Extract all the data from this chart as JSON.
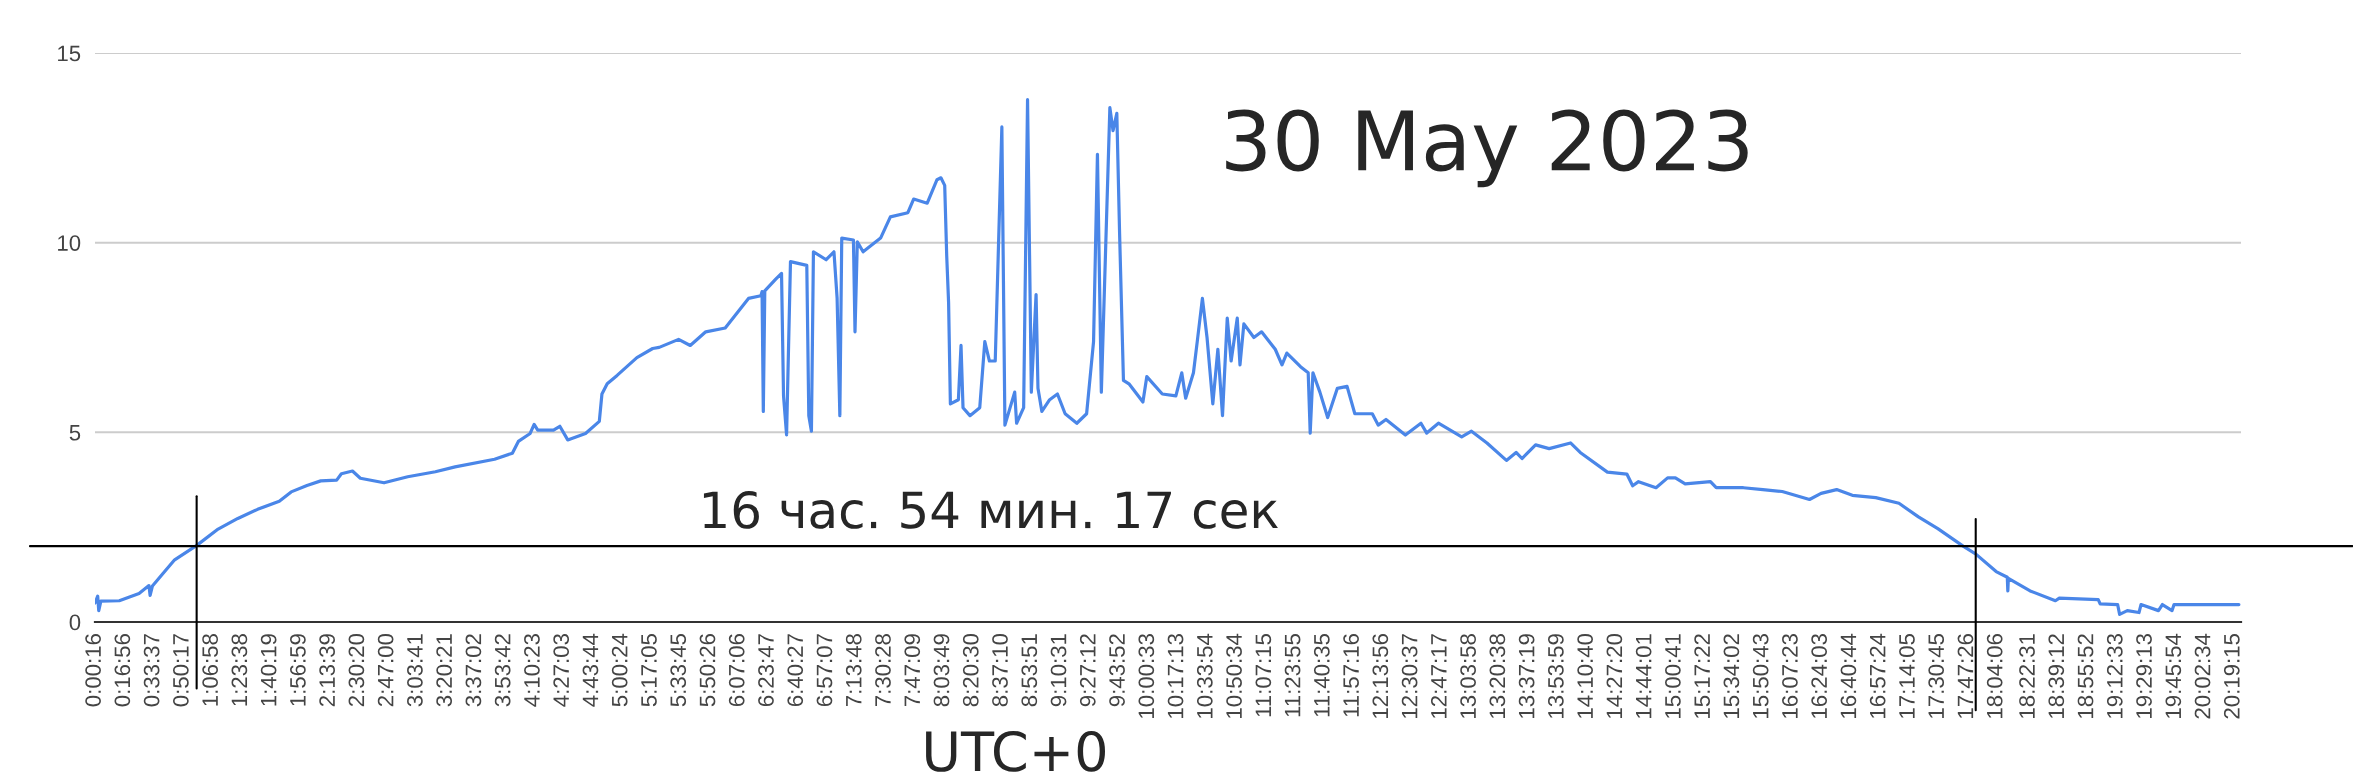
{
  "chart_data": {
    "type": "line",
    "title": "30 May 2023",
    "xlabel": "UTC+0",
    "annotations": [
      "16 час. 54 мин. 17 сек"
    ],
    "x": [
      0.0044,
      0.03,
      0.04,
      0.06,
      0.235,
      0.423,
      0.517,
      0.528,
      0.55,
      0.648,
      0.761,
      0.971,
      1.174,
      1.361,
      1.549,
      1.755,
      1.868,
      2.018,
      2.149,
      2.3,
      2.345,
      2.45,
      2.525,
      2.75,
      2.975,
      3.238,
      3.425,
      3.8,
      3.969,
      4.026,
      4.138,
      4.176,
      4.21,
      4.36,
      4.42,
      4.495,
      4.664,
      4.795,
      4.82,
      4.87,
      4.964,
      5.152,
      5.302,
      5.364,
      5.548,
      5.659,
      5.806,
      5.991,
      6.212,
      6.33,
      6.341,
      6.353,
      6.367,
      6.471,
      6.526,
      6.545,
      6.574,
      6.611,
      6.766,
      6.785,
      6.81,
      6.829,
      6.95,
      7.024,
      7.054,
      7.08,
      7.098,
      7.209,
      7.224,
      7.246,
      7.301,
      7.467,
      7.56,
      7.726,
      7.781,
      7.91,
      8.003,
      8.04,
      8.076,
      8.095,
      8.113,
      8.13,
      8.206,
      8.231,
      8.25,
      8.316,
      8.409,
      8.457,
      8.501,
      8.556,
      8.619,
      8.648,
      8.741,
      8.759,
      8.826,
      8.863,
      8.899,
      8.944,
      8.962,
      8.999,
      9.073,
      9.147,
      9.22,
      9.331,
      9.424,
      9.49,
      9.527,
      9.564,
      9.645,
      9.675,
      9.711,
      9.737,
      9.774,
      9.83,
      9.959,
      9.996,
      10.143,
      10.272,
      10.328,
      10.365,
      10.439,
      10.475,
      10.524,
      10.568,
      10.623,
      10.671,
      10.715,
      10.76,
      10.797,
      10.855,
      10.881,
      10.918,
      11.013,
      11.086,
      11.216,
      11.28,
      11.326,
      11.456,
      11.529,
      11.548,
      11.574,
      11.64,
      11.714,
      11.806,
      11.898,
      11.972,
      12.138,
      12.194,
      12.268,
      12.452,
      12.6,
      12.655,
      12.766,
      12.987,
      13.08,
      13.227,
      13.412,
      13.504,
      13.56,
      13.689,
      13.818,
      14.021,
      14.113,
      14.371,
      14.556,
      14.611,
      14.667,
      14.833,
      14.943,
      15.017,
      15.11,
      15.35,
      15.405,
      15.663,
      15.848,
      16.032,
      16.291,
      16.401,
      16.549,
      16.698,
      16.92,
      17.141,
      17.326,
      17.51,
      17.75,
      17.872,
      18.064,
      18.17,
      18.175,
      18.18,
      18.387,
      18.627,
      18.664,
      19.034,
      19.052,
      19.218,
      19.237,
      19.31,
      19.421,
      19.44,
      19.606,
      19.643,
      19.735,
      19.754,
      20.37
    ],
    "series": [
      {
        "color": "#4a86e8",
        "values": [
          0.5,
          0.68,
          0.3,
          0.55,
          0.56,
          0.75,
          0.96,
          0.7,
          0.95,
          1.27,
          1.64,
          2.02,
          2.45,
          2.73,
          2.97,
          3.18,
          3.43,
          3.6,
          3.72,
          3.74,
          3.91,
          3.98,
          3.79,
          3.67,
          3.83,
          3.96,
          4.09,
          4.29,
          4.45,
          4.76,
          4.97,
          5.21,
          5.06,
          5.06,
          5.16,
          4.8,
          4.97,
          5.29,
          6.01,
          6.28,
          6.5,
          6.97,
          7.21,
          7.24,
          7.45,
          7.29,
          7.65,
          7.75,
          8.53,
          8.6,
          8.71,
          5.55,
          8.73,
          9.04,
          9.19,
          5.96,
          4.93,
          9.5,
          9.4,
          5.44,
          5.03,
          9.76,
          9.55,
          9.76,
          8.53,
          5.44,
          10.12,
          10.07,
          7.65,
          10.02,
          9.76,
          10.12,
          10.68,
          10.79,
          11.15,
          11.04,
          11.66,
          11.71,
          11.51,
          9.66,
          8.42,
          5.75,
          5.86,
          7.29,
          5.65,
          5.44,
          5.65,
          7.39,
          6.88,
          6.88,
          13.05,
          5.19,
          6.06,
          5.24,
          5.65,
          13.77,
          6.06,
          8.63,
          6.16,
          5.55,
          5.86,
          6.01,
          5.49,
          5.24,
          5.49,
          7.39,
          12.33,
          6.06,
          13.56,
          12.95,
          13.41,
          10.28,
          6.37,
          6.27,
          5.8,
          6.47,
          6.01,
          5.96,
          6.57,
          5.9,
          6.57,
          7.39,
          8.53,
          7.5,
          5.75,
          7.19,
          5.44,
          8.01,
          6.88,
          8.01,
          6.78,
          7.86,
          7.5,
          7.65,
          7.19,
          6.78,
          7.09,
          6.73,
          6.57,
          4.98,
          6.57,
          6.06,
          5.39,
          6.16,
          6.21,
          5.49,
          5.49,
          5.19,
          5.34,
          4.93,
          5.24,
          4.98,
          5.24,
          4.88,
          5.03,
          4.72,
          4.26,
          4.47,
          4.31,
          4.67,
          4.57,
          4.72,
          4.47,
          3.95,
          3.9,
          3.59,
          3.7,
          3.54,
          3.8,
          3.8,
          3.64,
          3.7,
          3.54,
          3.54,
          3.49,
          3.44,
          3.23,
          3.39,
          3.49,
          3.34,
          3.28,
          3.13,
          2.77,
          2.46,
          2.0,
          1.79,
          1.33,
          1.18,
          0.82,
          1.15,
          0.82,
          0.56,
          0.63,
          0.59,
          0.48,
          0.46,
          0.2,
          0.3,
          0.25,
          0.46,
          0.3,
          0.46,
          0.3,
          0.46,
          0.46
        ]
      }
    ],
    "xlim": [
      0.0044,
      20.39
    ],
    "xticks": [
      {
        "value": 0.0044,
        "label": "0:00:16"
      },
      {
        "value": 0.2822,
        "label": "0:16:56"
      },
      {
        "value": 0.5603,
        "label": "0:33:37"
      },
      {
        "value": 0.8381,
        "label": "0:50:17"
      },
      {
        "value": 1.1161,
        "label": "1:06:58"
      },
      {
        "value": 1.3939,
        "label": "1:23:38"
      },
      {
        "value": 1.6719,
        "label": "1:40:19"
      },
      {
        "value": 1.9497,
        "label": "1:56:59"
      },
      {
        "value": 2.2275,
        "label": "2:13:39"
      },
      {
        "value": 2.5056,
        "label": "2:30:20"
      },
      {
        "value": 2.7833,
        "label": "2:47:00"
      },
      {
        "value": 3.0614,
        "label": "3:03:41"
      },
      {
        "value": 3.3392,
        "label": "3:20:21"
      },
      {
        "value": 3.6172,
        "label": "3:37:02"
      },
      {
        "value": 3.895,
        "label": "3:53:42"
      },
      {
        "value": 4.1731,
        "label": "4:10:23"
      },
      {
        "value": 4.4508,
        "label": "4:27:03"
      },
      {
        "value": 4.7289,
        "label": "4:43:44"
      },
      {
        "value": 5.0067,
        "label": "5:00:24"
      },
      {
        "value": 5.2847,
        "label": "5:17:05"
      },
      {
        "value": 5.5625,
        "label": "5:33:45"
      },
      {
        "value": 5.8406,
        "label": "5:50:26"
      },
      {
        "value": 6.1183,
        "label": "6:07:06"
      },
      {
        "value": 6.3964,
        "label": "6:23:47"
      },
      {
        "value": 6.6742,
        "label": "6:40:27"
      },
      {
        "value": 6.9519,
        "label": "6:57:07"
      },
      {
        "value": 7.23,
        "label": "7:13:48"
      },
      {
        "value": 7.5078,
        "label": "7:30:28"
      },
      {
        "value": 7.7858,
        "label": "7:47:09"
      },
      {
        "value": 8.0636,
        "label": "8:03:49"
      },
      {
        "value": 8.3417,
        "label": "8:20:30"
      },
      {
        "value": 8.6194,
        "label": "8:37:10"
      },
      {
        "value": 8.8975,
        "label": "8:53:51"
      },
      {
        "value": 9.1753,
        "label": "9:10:31"
      },
      {
        "value": 9.4533,
        "label": "9:27:12"
      },
      {
        "value": 9.7311,
        "label": "9:43:52"
      },
      {
        "value": 10.0092,
        "label": "10:00:33"
      },
      {
        "value": 10.2869,
        "label": "10:17:13"
      },
      {
        "value": 10.565,
        "label": "10:33:54"
      },
      {
        "value": 10.8428,
        "label": "10:50:34"
      },
      {
        "value": 11.1208,
        "label": "11:07:15"
      },
      {
        "value": 11.3986,
        "label": "11:23:55"
      },
      {
        "value": 11.6764,
        "label": "11:40:35"
      },
      {
        "value": 11.9544,
        "label": "11:57:16"
      },
      {
        "value": 12.2322,
        "label": "12:13:56"
      },
      {
        "value": 12.5103,
        "label": "12:30:37"
      },
      {
        "value": 12.7881,
        "label": "12:47:17"
      },
      {
        "value": 13.0661,
        "label": "13:03:58"
      },
      {
        "value": 13.3439,
        "label": "13:20:38"
      },
      {
        "value": 13.6219,
        "label": "13:37:19"
      },
      {
        "value": 13.8997,
        "label": "13:53:59"
      },
      {
        "value": 14.1778,
        "label": "14:10:40"
      },
      {
        "value": 14.4556,
        "label": "14:27:20"
      },
      {
        "value": 14.7336,
        "label": "14:44:01"
      },
      {
        "value": 15.0114,
        "label": "15:00:41"
      },
      {
        "value": 15.2894,
        "label": "15:17:22"
      },
      {
        "value": 15.5672,
        "label": "15:34:02"
      },
      {
        "value": 15.8453,
        "label": "15:50:43"
      },
      {
        "value": 16.1231,
        "label": "16:07:23"
      },
      {
        "value": 16.4008,
        "label": "16:24:03"
      },
      {
        "value": 16.6789,
        "label": "16:40:44"
      },
      {
        "value": 16.9567,
        "label": "16:57:24"
      },
      {
        "value": 17.2347,
        "label": "17:14:05"
      },
      {
        "value": 17.5125,
        "label": "17:30:45"
      },
      {
        "value": 17.7906,
        "label": "17:47:26"
      },
      {
        "value": 18.0683,
        "label": "18:04:06"
      },
      {
        "value": 18.3753,
        "label": "18:22:31"
      },
      {
        "value": 18.6533,
        "label": "18:39:12"
      },
      {
        "value": 18.9311,
        "label": "18:55:52"
      },
      {
        "value": 19.2092,
        "label": "19:12:33"
      },
      {
        "value": 19.4869,
        "label": "19:29:13"
      },
      {
        "value": 19.765,
        "label": "19:45:54"
      },
      {
        "value": 20.0428,
        "label": "20:02:34"
      },
      {
        "value": 20.3208,
        "label": "20:19:15"
      }
    ],
    "ylim": [
      0,
      15
    ],
    "yticks": [
      0,
      5,
      10,
      15
    ],
    "grid": "y",
    "ref_lines": [
      {
        "axis": "y",
        "value": 2.0,
        "color": "#000000"
      },
      {
        "axis": "x",
        "value": 0.97,
        "color": "#000000"
      },
      {
        "axis": "x",
        "value": 17.87,
        "color": "#000000"
      }
    ]
  }
}
